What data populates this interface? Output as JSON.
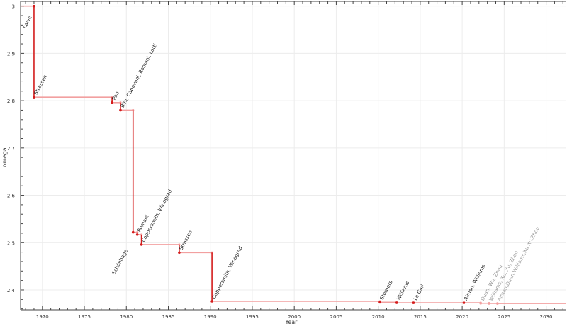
{
  "chart_data": {
    "type": "line",
    "step": true,
    "xlabel": "Year",
    "ylabel": "omega",
    "xlim": [
      1967.4,
      2032.4
    ],
    "ylim": [
      2.358,
      3.01
    ],
    "xticks": [
      1970,
      1975,
      1980,
      1985,
      1990,
      1995,
      2000,
      2005,
      2010,
      2015,
      2020,
      2025,
      2030
    ],
    "yticks": [
      2.4,
      2.5,
      2.6,
      2.7,
      2.8,
      2.9,
      3
    ],
    "ytick_labels": [
      "2.4",
      "2.5",
      "2.6",
      "2.7",
      "2.8",
      "2.9",
      "3"
    ],
    "grid": true,
    "colors": {
      "vertical": "#d41c1c",
      "horizontal": "#f2a0a0",
      "point": "#d41c1c",
      "label": "#222222",
      "label_recent": "#999999"
    },
    "points": [
      {
        "year": 1969,
        "omega": 3.0,
        "label": "naive"
      },
      {
        "year": 1969,
        "omega": 2.8074,
        "label": "Strassen"
      },
      {
        "year": 1978.3,
        "omega": 2.796,
        "label": "Pan"
      },
      {
        "year": 1979.3,
        "omega": 2.78,
        "label": "Bini, Capovani, Romani, Lotti"
      },
      {
        "year": 1980.8,
        "omega": 2.522,
        "label": "Schönhage"
      },
      {
        "year": 1981.3,
        "omega": 2.517,
        "label": "Romani"
      },
      {
        "year": 1981.8,
        "omega": 2.496,
        "label": "Coppersmith, Winograd"
      },
      {
        "year": 1986.3,
        "omega": 2.479,
        "label": "Strassen"
      },
      {
        "year": 1990.2,
        "omega": 2.376,
        "label": "Coppersmith, Winograd"
      },
      {
        "year": 2010.2,
        "omega": 2.374,
        "label": "Stothers"
      },
      {
        "year": 2012.2,
        "omega": 2.3729,
        "label": "Williams"
      },
      {
        "year": 2014.2,
        "omega": 2.3728639,
        "label": "Le Gall"
      },
      {
        "year": 2020.2,
        "omega": 2.3728596,
        "label": "Alman, Williams"
      },
      {
        "year": 2022.2,
        "omega": 2.371866,
        "label": "Duan, Wu, Zhou",
        "recent": true
      },
      {
        "year": 2023.2,
        "omega": 2.371552,
        "label": "Williams, Xu, Xu, Zhou",
        "recent": true
      },
      {
        "year": 2024.2,
        "omega": 2.371339,
        "label": "Alman,Duan,Williams,Xu,Xu,Zhou",
        "recent": true
      }
    ],
    "line_end_year": 2032.4
  }
}
